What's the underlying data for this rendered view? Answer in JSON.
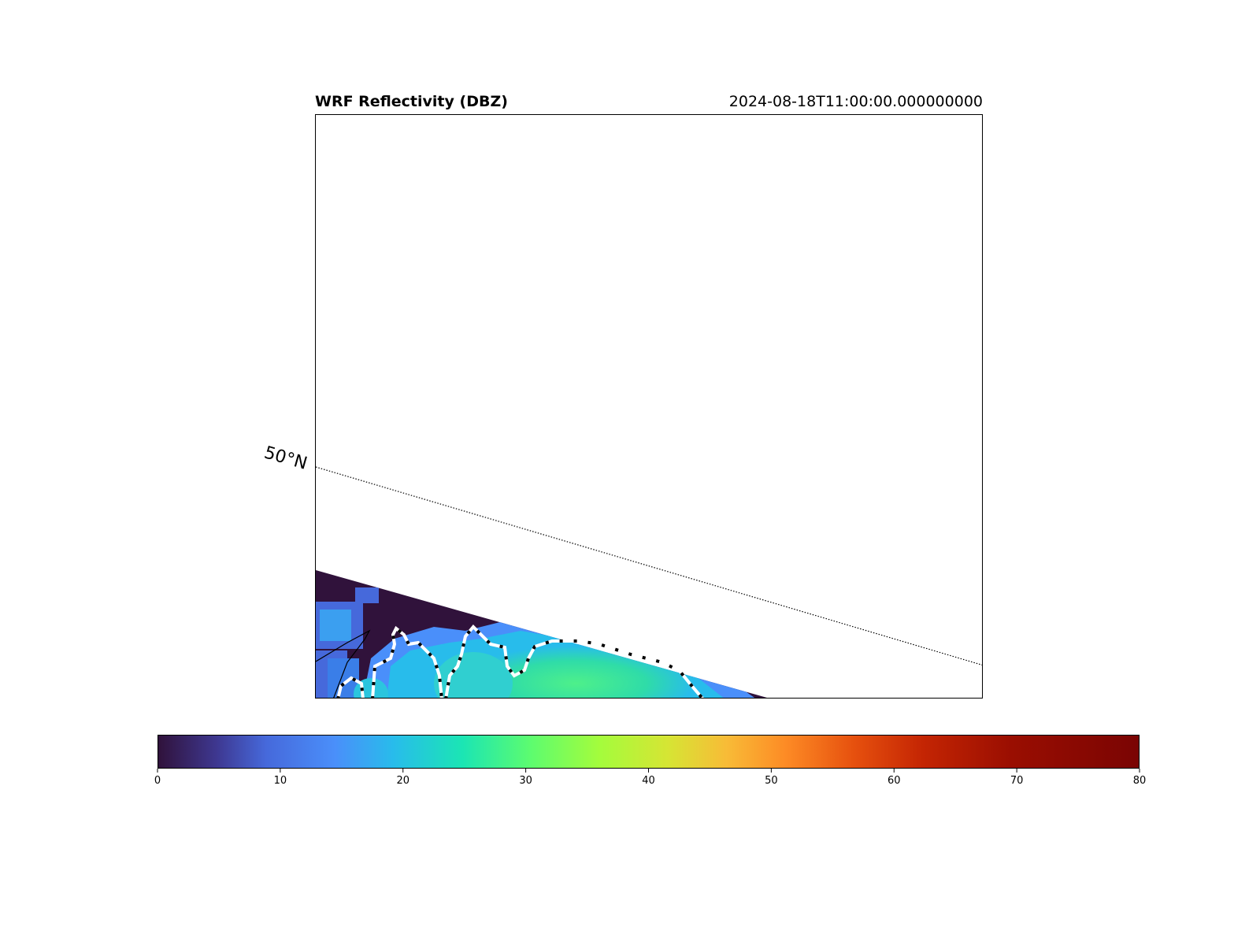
{
  "header": {
    "title": "WRF Reflectivity (DBZ)",
    "timestamp": "2024-08-18T11:00:00.000000000"
  },
  "map": {
    "gridline_label": "50°N",
    "colormap": "turbo"
  },
  "colorbar": {
    "min": 0,
    "max": 80,
    "ticks": [
      "0",
      "10",
      "20",
      "30",
      "40",
      "50",
      "60",
      "70",
      "80"
    ]
  },
  "colors": {
    "background_dbz": "#30123b",
    "light_echo": "#4a8ffa",
    "moderate_echo": "#28bceb",
    "heavier_echo": "#38e69a"
  }
}
